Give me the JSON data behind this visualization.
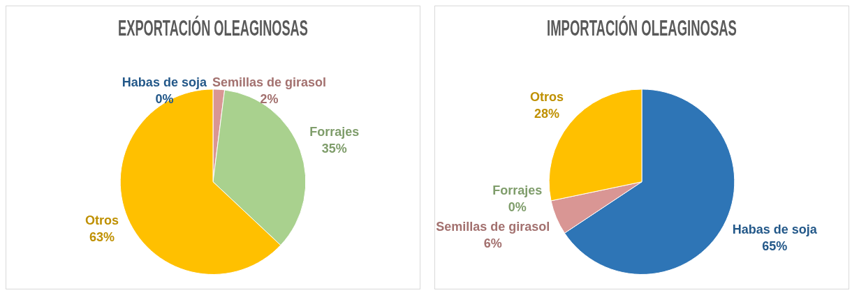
{
  "chart_data": [
    {
      "type": "pie",
      "title": "EXPORTACIÓN OLEAGINOSAS",
      "categories": [
        "Habas de soja",
        "Semillas de girasol",
        "Forrajes",
        "Otros"
      ],
      "values": [
        0,
        2,
        35,
        63
      ],
      "value_labels": [
        "0%",
        "2%",
        "35%",
        "63%"
      ],
      "colors": [
        "#2e75b6",
        "#d99694",
        "#a9d18e",
        "#ffc000"
      ],
      "legend": false
    },
    {
      "type": "pie",
      "title": "IMPORTACIÓN OLEAGINOSAS",
      "categories": [
        "Habas de soja",
        "Semillas de girasol",
        "Forrajes",
        "Otros"
      ],
      "values": [
        65,
        6,
        0,
        28
      ],
      "value_labels": [
        "65%",
        "6%",
        "0%",
        "28%"
      ],
      "colors": [
        "#2e75b6",
        "#d99694",
        "#a9d18e",
        "#ffc000"
      ],
      "legend": false
    }
  ]
}
